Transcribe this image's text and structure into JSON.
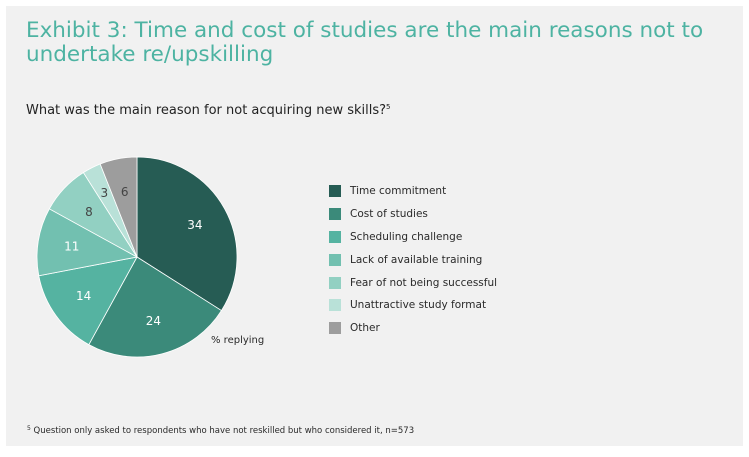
{
  "header": {
    "title": "Exhibit 3: Time and cost of studies are the main reasons not to undertake re/upskilling",
    "subtitle": "What was the main reason for not acquiring new skills?",
    "subtitle_note_mark": "5"
  },
  "chart_data": {
    "type": "pie",
    "title": "What was the main reason for not acquiring new skills?",
    "unit_label": "% replying",
    "legend_position": "right",
    "slices": [
      {
        "label": "Time commitment",
        "value": 34,
        "color": "#265c54"
      },
      {
        "label": "Cost of studies",
        "value": 24,
        "color": "#3b8a7a"
      },
      {
        "label": "Scheduling challenge",
        "value": 14,
        "color": "#55b3a1"
      },
      {
        "label": "Lack of available training",
        "value": 11,
        "color": "#72c0b0"
      },
      {
        "label": "Fear of not being successful",
        "value": 8,
        "color": "#92d0c2"
      },
      {
        "label": "Unattractive study format",
        "value": 3,
        "color": "#b9e1d8"
      },
      {
        "label": "Other",
        "value": 6,
        "color": "#9d9d9d"
      }
    ]
  },
  "footnote": {
    "mark": "5",
    "text": "Question only asked to respondents who have not reskilled but who considered it, n=573"
  }
}
